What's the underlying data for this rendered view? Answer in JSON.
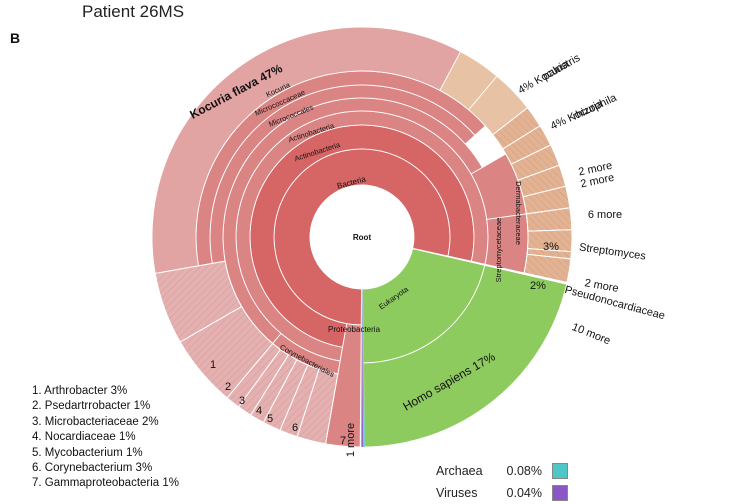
{
  "figure": {
    "title": "Patient 26MS",
    "panel_letter": "B"
  },
  "colors": {
    "bacteria_light": "#e2a3a3",
    "bacteria_mid": "#db8484",
    "bacteria_core": "#d66565",
    "corynebacteriales": "#e5b0b0",
    "actinomycetales": "#e2b292",
    "kocuria_small": "#e8c2a5",
    "eukaryota": "#8ecb5e",
    "archaea": "#4fc7c7",
    "viruses": "#8b57c6",
    "center": "#ffffff"
  },
  "chart_data": {
    "type": "pie",
    "subtype": "sunburst",
    "center_label": "Root",
    "segments": [
      {
        "label": "Kocuria flava 47%",
        "percent": 47
      },
      {
        "label": "4% Kocuria palustris",
        "percent": 4
      },
      {
        "label": "4% Kocuria rhizophila",
        "percent": 4
      },
      {
        "label": "3% Streptomyces",
        "percent": 3
      },
      {
        "label": "2% Pseudonocardiaceae",
        "percent": 2
      },
      {
        "label": "Homo sapiens 17%",
        "percent": 17
      },
      {
        "label": "Archaea 0.08%",
        "percent": 0.08
      },
      {
        "label": "Viruses 0.04%",
        "percent": 0.04
      }
    ],
    "ring_labels": [
      "Root",
      "Bacteria",
      "Actinobacteria",
      "Actinobacteria",
      "Micrococcales",
      "Micrococcaceae",
      "Kocuria",
      "Proteobacteria",
      "Corynebacteriales",
      "Streptomycetaceae",
      "Dermabacteraceae",
      "Eukaryota"
    ],
    "outer_labels": {
      "kocuria_flava": "Kocuria flava 47%",
      "kocuria_palustris_pct": "4% Kocuria",
      "kocuria_palustris_name": "palustris",
      "kocuria_rhizophila_pct": "4% Kocuria",
      "kocuria_rhizophila_name": "rhizophila",
      "more_a": "2 more",
      "more_b": "2 more",
      "more_c": "6 more",
      "streptomyces_pct": "3%",
      "streptomyces_name": "Streptomyces",
      "more_d": "2 more",
      "pseudo_pct": "2%",
      "pseudo_name": "Pseudonocardiaceae",
      "more_e": "10 more",
      "homo_sapiens": "Homo sapiens 17%",
      "one_more": "1 more",
      "root": "Root",
      "bacteria": "Bacteria",
      "actinobacteria_1": "Actinobacteria",
      "actinobacteria_2": "Actinobacteria",
      "micrococcales": "Micrococcales",
      "micrococcaceae": "Micrococcaceae",
      "kocuria": "Kocuria",
      "proteobacteria": "Proteobacteria",
      "corynebacteriales": "Corynebacteriales",
      "streptomycetaceae": "Streptomycetaceae",
      "dermabacteraceae": "Dermabacteraceae",
      "eukaryota": "Eukaryota",
      "n1": "1",
      "n2": "2",
      "n3": "3",
      "n4": "4",
      "n5": "5",
      "n6": "6",
      "n7": "7"
    }
  },
  "footnotes": [
    "1. Arthrobacter 3%",
    "2. Psedartrrobacter 1%",
    "3. Microbacteriaceae 2%",
    "4. Nocardiaceae 1%",
    "5. Mycobacterium 1%",
    "6. Corynebacterium 3%",
    "7. Gammaproteobacteria 1%"
  ],
  "legend": [
    {
      "name": "Archaea",
      "value": "0.08%",
      "color": "#4fc7c7"
    },
    {
      "name": "Viruses",
      "value": "0.04%",
      "color": "#8b57c6"
    }
  ]
}
